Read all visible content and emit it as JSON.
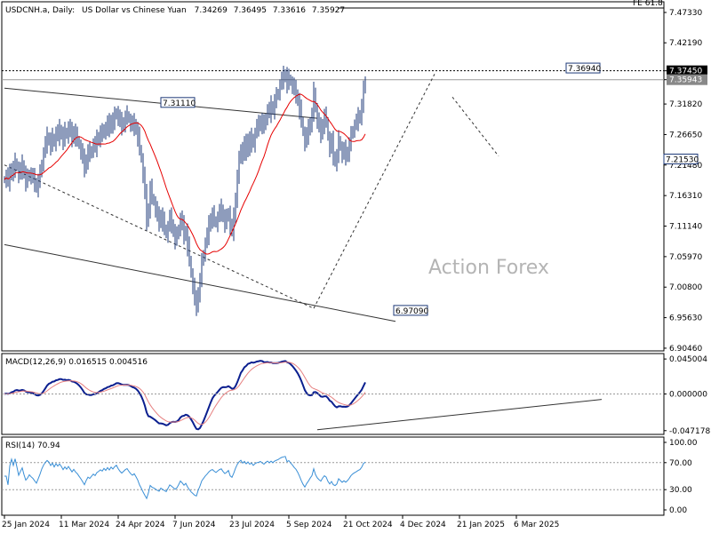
{
  "chart_data": {
    "type": "candlestick",
    "header": {
      "symbol": "USDCNH.a, Daily:",
      "description": "US Dollar vs Chinese Yuan",
      "ohlc": [
        "7.34269",
        "7.36495",
        "7.33616",
        "7.35927"
      ]
    },
    "watermark": "Action Forex",
    "price_panel": {
      "ylim": [
        6.9,
        7.4914
      ],
      "y_ticks": [
        "7.47330",
        "7.42190",
        "7.37450",
        "7.35943",
        "7.31820",
        "7.26650",
        "7.21480",
        "7.16310",
        "7.11140",
        "7.05970",
        "7.00800",
        "6.95630",
        "6.90460"
      ],
      "fib_label": "FE 61.8",
      "fib_level": 7.4809,
      "resistance_level": 7.3745,
      "current_price": 7.35943,
      "annotations": [
        {
          "text": "7.31110",
          "x": 112,
          "y": 7.3111
        },
        {
          "text": "6.97090",
          "x": 243,
          "y": 6.9709
        },
        {
          "text": "7.36940",
          "x": 340,
          "y": 7.3694
        },
        {
          "text": "7.21530",
          "x": 395,
          "y": 7.2153
        }
      ],
      "close_series": [
        7.19,
        7.197,
        7.186,
        7.199,
        7.21,
        7.205,
        7.22,
        7.211,
        7.198,
        7.206,
        7.215,
        7.202,
        7.188,
        7.193,
        7.201,
        7.196,
        7.192,
        7.185,
        7.178,
        7.188,
        7.2,
        7.218,
        7.235,
        7.25,
        7.262,
        7.258,
        7.249,
        7.262,
        7.252,
        7.27,
        7.263,
        7.275,
        7.268,
        7.258,
        7.272,
        7.265,
        7.279,
        7.27,
        7.261,
        7.273,
        7.264,
        7.258,
        7.248,
        7.238,
        7.225,
        7.21,
        7.225,
        7.238,
        7.232,
        7.241,
        7.25,
        7.244,
        7.257,
        7.263,
        7.27,
        7.266,
        7.278,
        7.272,
        7.285,
        7.278,
        7.292,
        7.286,
        7.298,
        7.305,
        7.295,
        7.287,
        7.281,
        7.288,
        7.295,
        7.3,
        7.292,
        7.285,
        7.28,
        7.285,
        7.276,
        7.264,
        7.243,
        7.225,
        7.198,
        7.165,
        7.12,
        7.142,
        7.176,
        7.16,
        7.152,
        7.14,
        7.127,
        7.118,
        7.131,
        7.12,
        7.108,
        7.097,
        7.11,
        7.125,
        7.115,
        7.103,
        7.09,
        7.095,
        7.108,
        7.124,
        7.112,
        7.096,
        7.104,
        7.078,
        7.055,
        7.03,
        7.01,
        6.985,
        6.975,
        7.0,
        7.02,
        7.05,
        7.065,
        7.082,
        7.095,
        7.112,
        7.125,
        7.131,
        7.122,
        7.115,
        7.126,
        7.135,
        7.14,
        7.128,
        7.118,
        7.125,
        7.136,
        7.11,
        7.102,
        7.125,
        7.16,
        7.195,
        7.223,
        7.244,
        7.23,
        7.25,
        7.238,
        7.26,
        7.248,
        7.262,
        7.25,
        7.268,
        7.279,
        7.282,
        7.291,
        7.285,
        7.28,
        7.296,
        7.308,
        7.302,
        7.315,
        7.31,
        7.323,
        7.331,
        7.338,
        7.35,
        7.359,
        7.365,
        7.369,
        7.354,
        7.362,
        7.355,
        7.349,
        7.341,
        7.335,
        7.325,
        7.31,
        7.29,
        7.27,
        7.252,
        7.265,
        7.275,
        7.288,
        7.3,
        7.34,
        7.31,
        7.29,
        7.278,
        7.268,
        7.285,
        7.298,
        7.29,
        7.262,
        7.242,
        7.255,
        7.23,
        7.222,
        7.23,
        7.258,
        7.245,
        7.232,
        7.24,
        7.23,
        7.238,
        7.25,
        7.265,
        7.275,
        7.282,
        7.288,
        7.295,
        7.3,
        7.315,
        7.342,
        7.359
      ]
    },
    "x_axis": {
      "labels": [
        {
          "text": "25 Jan 2024",
          "x": 0
        },
        {
          "text": "11 Mar 2024",
          "x": 32
        },
        {
          "text": "24 Apr 2024",
          "x": 64
        },
        {
          "text": "7 Jun 2024",
          "x": 96
        },
        {
          "text": "23 Jul 2024",
          "x": 128
        },
        {
          "text": "5 Sep 2024",
          "x": 160
        },
        {
          "text": "21 Oct 2024",
          "x": 192
        },
        {
          "text": "4 Dec 2024",
          "x": 224
        },
        {
          "text": "21 Jan 2025",
          "x": 256
        },
        {
          "text": "6 Mar 2025",
          "x": 288
        }
      ]
    },
    "macd_panel": {
      "title": "MACD(12,26,9) 0.016515 0.004516",
      "macd": 0.016515,
      "signal": 0.004516,
      "ylim": [
        -0.052,
        0.052
      ],
      "y_ticks": [
        "0.045004",
        "0.000000",
        "-0.047178"
      ],
      "y_tick_values": [
        0.045004,
        0.0,
        -0.047178
      ]
    },
    "rsi_panel": {
      "title": "RSI(14) 70.94",
      "value": 70.94,
      "ylim": [
        0,
        100
      ],
      "y_ticks": [
        "100.00",
        "70.00",
        "30.00",
        "0.00"
      ],
      "y_tick_values": [
        100,
        70,
        30,
        0
      ]
    },
    "colors": {
      "bull": "#1e3a78",
      "bear": "#1e3a78",
      "ma": "#e60000",
      "macd": "#0b1f8f",
      "signal": "#e68080",
      "rsi": "#3a8fd6",
      "trend": "#333333",
      "price_tag": "#000000"
    },
    "legend": "none",
    "grid": false
  }
}
